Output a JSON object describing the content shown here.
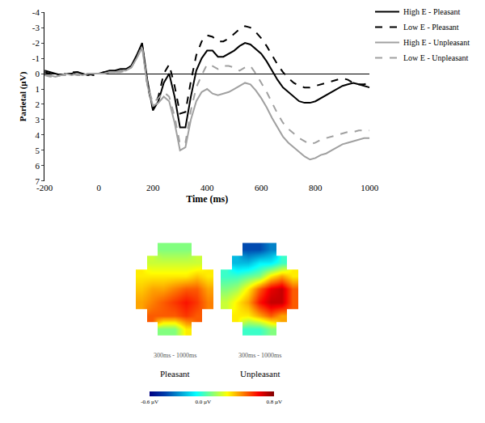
{
  "chart_data": [
    {
      "type": "line",
      "x_label": "Time (ms)",
      "y_label": "Parietal (µV)",
      "x": [
        -200,
        -180,
        -160,
        -140,
        -120,
        -100,
        -80,
        -60,
        -40,
        -20,
        0,
        20,
        40,
        60,
        80,
        100,
        120,
        140,
        160,
        180,
        200,
        220,
        240,
        260,
        280,
        300,
        320,
        340,
        360,
        380,
        400,
        420,
        440,
        460,
        480,
        500,
        520,
        540,
        560,
        580,
        600,
        620,
        640,
        660,
        680,
        700,
        720,
        740,
        760,
        780,
        800,
        820,
        840,
        860,
        880,
        900,
        920,
        940,
        960,
        980,
        1000
      ],
      "series": [
        {
          "name": "High E - Pleasant",
          "color": "#000000",
          "line_style": "solid",
          "values": [
            -0.2,
            -0.1,
            0,
            0.1,
            0,
            0,
            -0.1,
            0,
            0.1,
            0,
            0,
            -0.1,
            -0.2,
            -0.2,
            -0.3,
            -0.3,
            -0.5,
            -1.2,
            -2.0,
            0.5,
            2.4,
            1.8,
            0.6,
            0,
            1.5,
            3.5,
            3.5,
            1.5,
            -0.2,
            -1.0,
            -1.5,
            -1.5,
            -1.1,
            -1.1,
            -1.3,
            -1.5,
            -1.8,
            -2.0,
            -1.9,
            -1.6,
            -1.3,
            -0.8,
            -0.2,
            0.4,
            0.9,
            1.2,
            1.5,
            1.8,
            1.9,
            1.9,
            1.8,
            1.6,
            1.4,
            1.2,
            1.0,
            0.8,
            0.7,
            0.6,
            0.7,
            0.8,
            0.9
          ]
        },
        {
          "name": "Low E - Pleasant",
          "color": "#000000",
          "line_style": "dashed",
          "values": [
            -0.1,
            0,
            0.1,
            0.1,
            0,
            -0.1,
            -0.1,
            0,
            0,
            0.1,
            0,
            -0.1,
            -0.1,
            -0.2,
            -0.2,
            -0.3,
            -0.5,
            -1.1,
            -1.9,
            0.8,
            2.3,
            1.5,
            0,
            -0.6,
            0.8,
            2.6,
            2.5,
            0.5,
            -1.2,
            -2.1,
            -2.5,
            -2.4,
            -2.1,
            -2.1,
            -2.3,
            -2.6,
            -2.9,
            -3.1,
            -3.0,
            -2.7,
            -2.3,
            -1.8,
            -1.2,
            -0.6,
            -0.1,
            0.3,
            0.6,
            0.8,
            0.9,
            0.9,
            0.8,
            0.7,
            0.6,
            0.5,
            0.4,
            0.3,
            0.4,
            0.6,
            0.7,
            0.7,
            0.6
          ]
        },
        {
          "name": "High E - Unpleasant",
          "color": "#a0a0a0",
          "line_style": "solid",
          "values": [
            0.1,
            0.1,
            0.2,
            0.1,
            0,
            0.1,
            0,
            0.1,
            0,
            0,
            0,
            0,
            -0.1,
            -0.1,
            -0.2,
            -0.2,
            -0.4,
            -1.0,
            -1.7,
            0.8,
            2.1,
            1.9,
            1.5,
            1.8,
            3.2,
            5.0,
            4.8,
            3.0,
            1.8,
            1.2,
            1.0,
            1.3,
            1.4,
            1.3,
            1.2,
            1.0,
            0.8,
            0.6,
            0.7,
            1.1,
            1.6,
            2.2,
            2.9,
            3.5,
            4.1,
            4.5,
            4.8,
            5.1,
            5.4,
            5.6,
            5.5,
            5.3,
            5.2,
            5.0,
            4.8,
            4.6,
            4.5,
            4.4,
            4.3,
            4.2,
            4.2
          ]
        },
        {
          "name": "Low E - Unpleasant",
          "color": "#a0a0a0",
          "line_style": "dashed",
          "values": [
            0.1,
            0.2,
            0.2,
            0.1,
            0.1,
            0,
            0.1,
            0.1,
            0,
            0,
            0,
            0,
            -0.1,
            -0.1,
            -0.1,
            -0.2,
            -0.4,
            -1.0,
            -1.8,
            0.8,
            1.9,
            1.6,
            1.2,
            1.5,
            2.8,
            4.6,
            4.5,
            2.4,
            0.9,
            0.1,
            -0.6,
            -0.5,
            -0.3,
            -0.5,
            -0.5,
            -0.4,
            -0.2,
            -0.4,
            -0.5,
            0,
            0.6,
            1.2,
            1.9,
            2.6,
            3.2,
            3.6,
            3.9,
            4.2,
            4.4,
            4.6,
            4.5,
            4.3,
            4.2,
            4.1,
            4.0,
            3.9,
            3.8,
            3.8,
            3.7,
            3.7,
            3.7
          ]
        }
      ],
      "xlim": [
        -200,
        1000
      ],
      "xticks": [
        -200,
        0,
        200,
        400,
        600,
        800,
        1000
      ],
      "ylim": [
        7,
        -4
      ],
      "yticks": [
        -4,
        -3,
        -2,
        -1,
        0,
        1,
        2,
        3,
        4,
        5,
        6,
        7
      ],
      "grid": false,
      "legend": "top right"
    },
    {
      "type": "heatmap",
      "title": "Pleasant",
      "subtitle": "300ms - 1000ms",
      "tick_labels": false,
      "zlim": [
        -0.6,
        0.8
      ],
      "z": [
        [
          null,
          null,
          0.1,
          0.1,
          0.1,
          null,
          null
        ],
        [
          null,
          0.2,
          0.2,
          0.2,
          0.2,
          0.2,
          null
        ],
        [
          0.3,
          0.3,
          0.3,
          0.3,
          0.3,
          0.35,
          0.3
        ],
        [
          0.35,
          0.4,
          0.4,
          0.45,
          0.5,
          0.5,
          0.4
        ],
        [
          0.4,
          0.45,
          0.5,
          0.55,
          0.6,
          0.55,
          0.45
        ],
        [
          null,
          0.5,
          0.5,
          0.5,
          0.55,
          0.5,
          null
        ],
        [
          null,
          null,
          0.1,
          0.1,
          0.3,
          null,
          null
        ]
      ]
    },
    {
      "type": "heatmap",
      "title": "Unpleasant",
      "subtitle": "300ms - 1000ms",
      "tick_labels": false,
      "zlim": [
        -0.6,
        0.8
      ],
      "colorbar_ticks": [
        {
          "value": -0.6,
          "label": "-0.6 µV"
        },
        {
          "value": 0,
          "label": "0.0 µV"
        },
        {
          "value": 0.8,
          "label": "0.8 µV"
        }
      ],
      "z": [
        [
          null,
          null,
          -0.4,
          -0.4,
          -0.3,
          null,
          null
        ],
        [
          null,
          -0.2,
          -0.2,
          -0.1,
          -0.1,
          0,
          null
        ],
        [
          0,
          0,
          0.05,
          0.1,
          0.3,
          0.4,
          0.3
        ],
        [
          0.1,
          0.15,
          0.3,
          0.5,
          0.65,
          0.7,
          0.5
        ],
        [
          0.2,
          0.3,
          0.4,
          0.6,
          0.7,
          0.7,
          0.5
        ],
        [
          null,
          0.3,
          0.3,
          0.4,
          0.5,
          0.4,
          null
        ],
        [
          null,
          null,
          0.0,
          0.0,
          0.1,
          null,
          null
        ]
      ]
    }
  ]
}
